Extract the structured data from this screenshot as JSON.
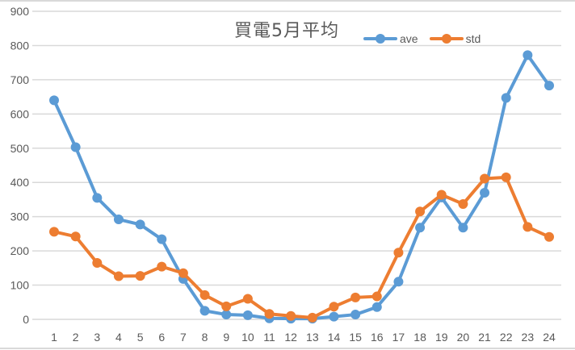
{
  "chart_data": {
    "type": "line",
    "title": "買電5月平均",
    "xlabel": "",
    "ylabel": "",
    "categories": [
      "1",
      "2",
      "3",
      "4",
      "5",
      "6",
      "7",
      "8",
      "9",
      "10",
      "11",
      "12",
      "13",
      "14",
      "15",
      "16",
      "17",
      "18",
      "19",
      "20",
      "21",
      "22",
      "23",
      "24"
    ],
    "series": [
      {
        "name": "ave",
        "color": "#5b9bd5",
        "values": [
          640,
          503,
          355,
          292,
          277,
          234,
          118,
          25,
          14,
          12,
          3,
          2,
          2,
          8,
          14,
          36,
          110,
          268,
          356,
          268,
          370,
          647,
          772,
          683
        ]
      },
      {
        "name": "std",
        "color": "#ed7d31",
        "values": [
          256,
          242,
          165,
          126,
          127,
          154,
          135,
          71,
          38,
          60,
          16,
          10,
          5,
          37,
          64,
          67,
          195,
          315,
          364,
          337,
          411,
          415,
          270,
          241
        ]
      }
    ],
    "ylim": [
      0,
      900
    ],
    "yticks": [
      0,
      100,
      200,
      300,
      400,
      500,
      600,
      700,
      800,
      900
    ],
    "grid": true,
    "legend_position": "top-right"
  },
  "legend": {
    "items": [
      {
        "label": "ave",
        "color": "#5b9bd5"
      },
      {
        "label": "std",
        "color": "#ed7d31"
      }
    ]
  }
}
